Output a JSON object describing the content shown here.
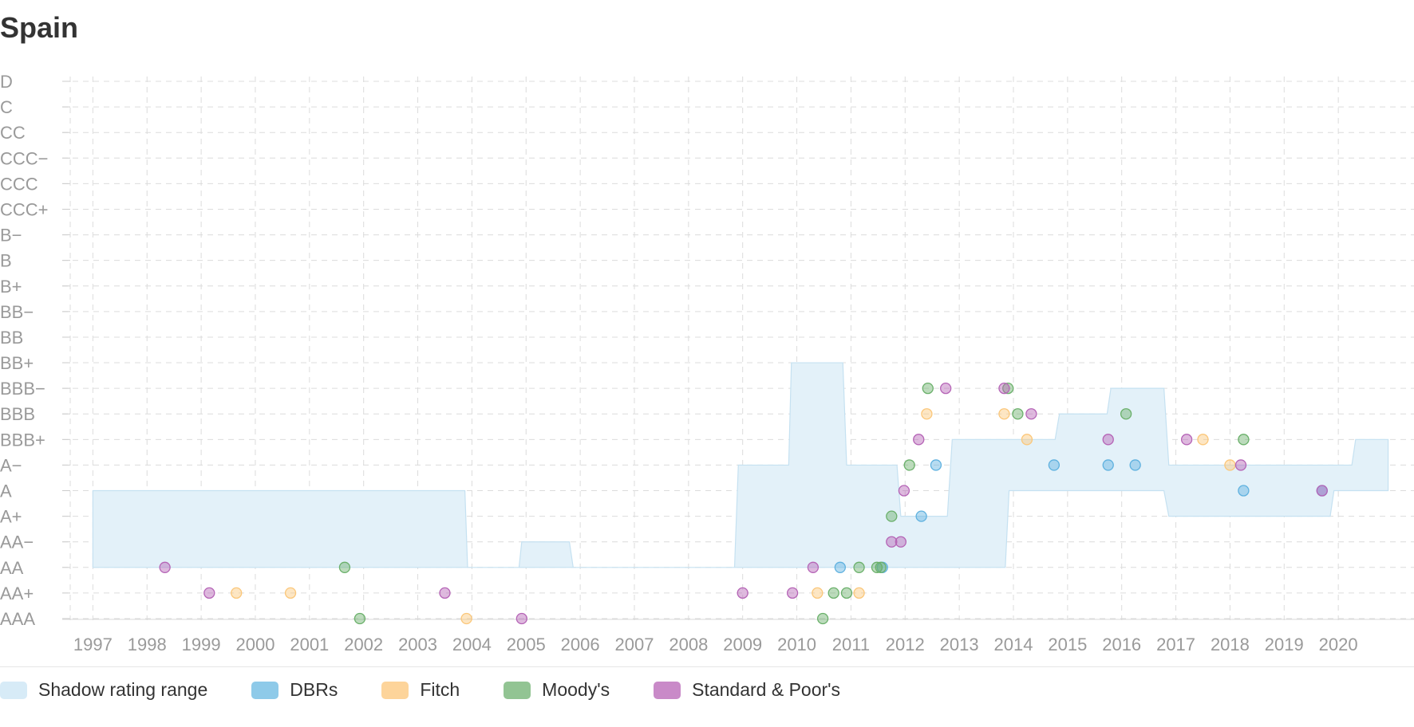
{
  "title": "Spain",
  "chart_data": {
    "type": "scatter",
    "title": "Spain",
    "x_ticks": [
      "1997",
      "1998",
      "1999",
      "2000",
      "2001",
      "2002",
      "2003",
      "2004",
      "2005",
      "2006",
      "2007",
      "2008",
      "2009",
      "2010",
      "2011",
      "2012",
      "2013",
      "2014",
      "2015",
      "2016",
      "2017",
      "2018",
      "2019",
      "2020"
    ],
    "xlim": [
      1996.95,
      2021.0
    ],
    "y_categories": [
      "AAA",
      "AA+",
      "AA",
      "AA−",
      "A+",
      "A",
      "A−",
      "BBB+",
      "BBB",
      "BBB−",
      "BB+",
      "BB",
      "BB−",
      "B+",
      "B",
      "B−",
      "CCC+",
      "CCC",
      "CCC−",
      "CC",
      "C",
      "D"
    ],
    "grid": true,
    "legend_position": "bottom",
    "colors": {
      "shadow_fill": "#e3f1f9",
      "shadow_stroke": "#c5e1f1",
      "dbrs": "#5fb1df",
      "fitch": "#fbc77a",
      "moodys": "#6ab06a",
      "sp": "#b564b6",
      "grid": "#dcdcdc",
      "tick_text": "#9a9a9a"
    },
    "legend": [
      {
        "key": "shadow",
        "label": "Shadow rating range",
        "color": "#d7ebf7"
      },
      {
        "key": "dbrs",
        "label": "DBRs",
        "color": "#8ecae9"
      },
      {
        "key": "fitch",
        "label": "Fitch",
        "color": "#fdd49a"
      },
      {
        "key": "moodys",
        "label": "Moody's",
        "color": "#92c493"
      },
      {
        "key": "sp",
        "label": "Standard & Poor's",
        "color": "#c98ac8"
      }
    ],
    "shadow_range": {
      "upper": [
        [
          1997.0,
          5
        ],
        [
          2003.87,
          5
        ],
        [
          2003.92,
          2
        ],
        [
          2004.87,
          2
        ],
        [
          2004.92,
          3
        ],
        [
          2005.8,
          3
        ],
        [
          2005.87,
          2
        ],
        [
          2008.85,
          2
        ],
        [
          2008.92,
          6
        ],
        [
          2009.85,
          6
        ],
        [
          2009.9,
          10
        ],
        [
          2010.85,
          10
        ],
        [
          2010.92,
          6
        ],
        [
          2011.85,
          6
        ],
        [
          2011.92,
          4
        ],
        [
          2012.78,
          4
        ],
        [
          2012.87,
          7
        ],
        [
          2014.77,
          7
        ],
        [
          2014.85,
          8
        ],
        [
          2015.73,
          8
        ],
        [
          2015.8,
          9
        ],
        [
          2016.78,
          9
        ],
        [
          2016.87,
          6
        ],
        [
          2020.25,
          6
        ],
        [
          2020.32,
          7
        ],
        [
          2020.92,
          7
        ]
      ],
      "lower": [
        [
          1997.0,
          2
        ],
        [
          2003.92,
          2
        ],
        [
          2004.87,
          2
        ],
        [
          2005.87,
          2
        ],
        [
          2008.85,
          2
        ],
        [
          2013.85,
          2
        ],
        [
          2013.92,
          5
        ],
        [
          2016.78,
          5
        ],
        [
          2016.87,
          4
        ],
        [
          2019.85,
          4
        ],
        [
          2019.92,
          5
        ],
        [
          2020.92,
          5
        ]
      ]
    },
    "series": [
      {
        "name": "DBRs",
        "key": "dbrs",
        "points": [
          [
            2010.8,
            2
          ],
          [
            2011.58,
            2
          ],
          [
            2012.3,
            4
          ],
          [
            2012.57,
            6
          ],
          [
            2014.75,
            6
          ],
          [
            2015.75,
            6
          ],
          [
            2016.25,
            6
          ],
          [
            2018.25,
            5
          ],
          [
            2019.7,
            5
          ]
        ]
      },
      {
        "name": "Fitch",
        "key": "fitch",
        "points": [
          [
            1999.65,
            1
          ],
          [
            2000.65,
            1
          ],
          [
            2003.9,
            0
          ],
          [
            2010.38,
            1
          ],
          [
            2011.15,
            1
          ],
          [
            2012.4,
            8
          ],
          [
            2013.83,
            8
          ],
          [
            2014.25,
            7
          ],
          [
            2017.5,
            7
          ],
          [
            2018.0,
            6
          ]
        ]
      },
      {
        "name": "Moody's",
        "key": "moodys",
        "points": [
          [
            2001.65,
            2
          ],
          [
            2001.93,
            0
          ],
          [
            2010.48,
            0
          ],
          [
            2010.68,
            1
          ],
          [
            2010.92,
            1
          ],
          [
            2011.15,
            2
          ],
          [
            2011.48,
            2
          ],
          [
            2011.55,
            2
          ],
          [
            2011.75,
            4
          ],
          [
            2012.08,
            6
          ],
          [
            2012.42,
            9
          ],
          [
            2013.9,
            9
          ],
          [
            2014.08,
            8
          ],
          [
            2016.08,
            8
          ],
          [
            2018.25,
            7
          ]
        ]
      },
      {
        "name": "Standard & Poor's",
        "key": "sp",
        "points": [
          [
            1998.33,
            2
          ],
          [
            1999.15,
            1
          ],
          [
            2003.5,
            1
          ],
          [
            2004.92,
            0
          ],
          [
            2009.0,
            1
          ],
          [
            2009.92,
            1
          ],
          [
            2010.3,
            2
          ],
          [
            2011.75,
            3
          ],
          [
            2011.92,
            3
          ],
          [
            2011.98,
            5
          ],
          [
            2012.25,
            7
          ],
          [
            2012.75,
            9
          ],
          [
            2013.83,
            9
          ],
          [
            2014.33,
            8
          ],
          [
            2015.75,
            7
          ],
          [
            2017.2,
            7
          ],
          [
            2018.2,
            6
          ],
          [
            2019.7,
            5
          ]
        ]
      }
    ]
  }
}
